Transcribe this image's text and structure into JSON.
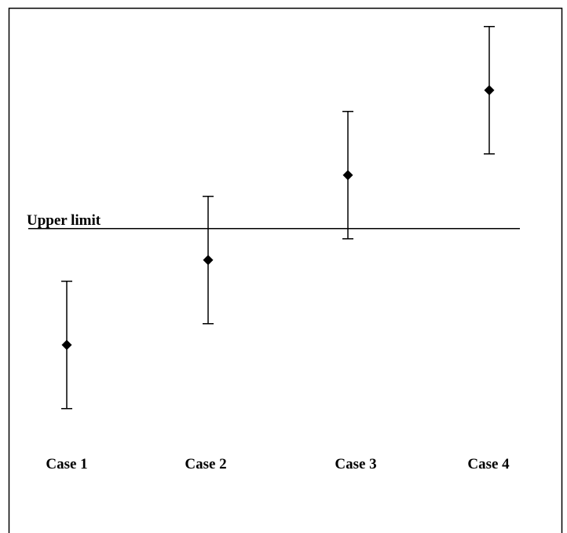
{
  "chart_data": {
    "type": "scatter",
    "title": "",
    "xlabel": "",
    "ylabel": "",
    "categories": [
      "Case 1",
      "Case 2",
      "Case 3",
      "Case 4"
    ],
    "series": [
      {
        "values": [
          -1.37,
          -0.37,
          0.63,
          1.63
        ],
        "error_low": [
          -2.12,
          -1.12,
          -0.12,
          0.88
        ],
        "error_high": [
          -0.62,
          0.38,
          1.38,
          2.38
        ]
      }
    ],
    "reference_line": {
      "label": "Upper limit",
      "value": 0
    },
    "marker": "diamond",
    "axes_visible": false,
    "grid": false,
    "legend": "none",
    "ylim": [
      -3.4,
      2.6
    ],
    "colors": {
      "ink": "#000000",
      "background": "#ffffff"
    }
  }
}
